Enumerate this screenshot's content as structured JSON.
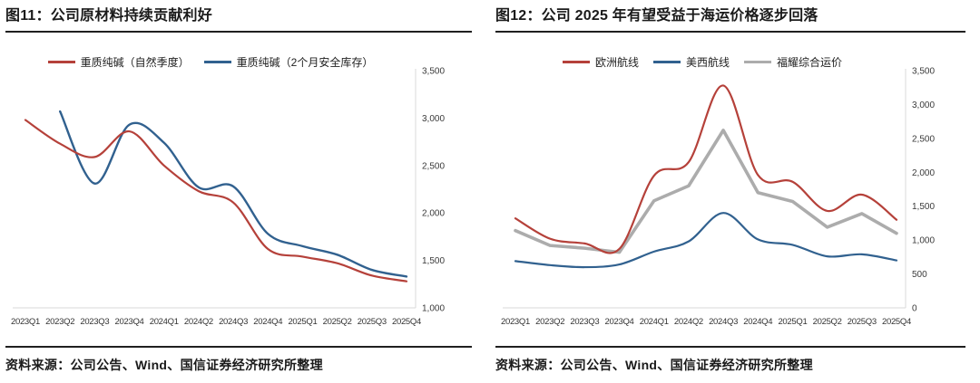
{
  "page": {
    "background": "#ffffff"
  },
  "figures": [
    {
      "title": "图11：公司原材料持续贡献利好",
      "source": "资料来源：公司公告、Wind、国信证券经济研究所整理"
    },
    {
      "title": "图12：公司 2025 年有望受益于海运价格逐步回落",
      "source": "资料来源：公司公告、Wind、国信证券经济研究所整理"
    }
  ],
  "colors": {
    "series_red": "#B5413A",
    "series_blue": "#31618F",
    "series_gray": "#ACACAC",
    "axis_line": "#D8D8D8",
    "tick_text": "#3A3A3A",
    "rule": "#1F1F1F"
  },
  "chart_data": [
    {
      "type": "line",
      "title": "图11：公司原材料持续贡献利好",
      "categories": [
        "2023Q1",
        "2023Q2",
        "2023Q3",
        "2023Q4",
        "2024Q1",
        "2024Q2",
        "2024Q3",
        "2024Q4",
        "2025Q1",
        "2025Q2",
        "2025Q3",
        "2025Q4"
      ],
      "series": [
        {
          "name": "重质纯碱（自然季度）",
          "color": "#B5413A",
          "width": 2.2,
          "smooth": true,
          "values": [
            2980,
            2730,
            2590,
            2860,
            2500,
            2230,
            2110,
            1620,
            1540,
            1470,
            1340,
            1280
          ]
        },
        {
          "name": "重质纯碱（2个月安全库存）",
          "color": "#31618F",
          "width": 2.4,
          "smooth": true,
          "values": [
            null,
            3070,
            2310,
            2930,
            2740,
            2270,
            2280,
            1780,
            1650,
            1560,
            1400,
            1330
          ]
        }
      ],
      "xlabel": "",
      "ylabel": "",
      "ylim": [
        1000,
        3500
      ],
      "yticks": [
        1000,
        1500,
        2000,
        2500,
        3000,
        3500
      ],
      "grid": false,
      "y_axis_side": "right",
      "legend_position": "top-center"
    },
    {
      "type": "line",
      "title": "图12：公司 2025 年有望受益于海运价格逐步回落",
      "categories": [
        "2023Q1",
        "2023Q2",
        "2023Q3",
        "2023Q4",
        "2024Q1",
        "2024Q2",
        "2024Q3",
        "2024Q4",
        "2025Q1",
        "2025Q2",
        "2025Q3",
        "2025Q4"
      ],
      "series": [
        {
          "name": "欧洲航线",
          "color": "#B5413A",
          "width": 2.2,
          "smooth": true,
          "values": [
            1320,
            1020,
            950,
            870,
            1950,
            2150,
            3280,
            1960,
            1860,
            1430,
            1670,
            1300
          ]
        },
        {
          "name": "美西航线",
          "color": "#31618F",
          "width": 2.2,
          "smooth": true,
          "values": [
            690,
            630,
            600,
            640,
            830,
            980,
            1400,
            1010,
            930,
            760,
            790,
            700
          ]
        },
        {
          "name": "福耀综合运价",
          "color": "#ACACAC",
          "width": 3.6,
          "smooth": false,
          "values": [
            1140,
            920,
            880,
            820,
            1580,
            1800,
            2620,
            1700,
            1570,
            1190,
            1390,
            1100
          ]
        }
      ],
      "xlabel": "",
      "ylabel": "",
      "ylim": [
        0,
        3500
      ],
      "yticks": [
        0,
        500,
        1000,
        1500,
        2000,
        2500,
        3000,
        3500
      ],
      "grid": false,
      "y_axis_side": "right",
      "legend_position": "top-center"
    }
  ]
}
